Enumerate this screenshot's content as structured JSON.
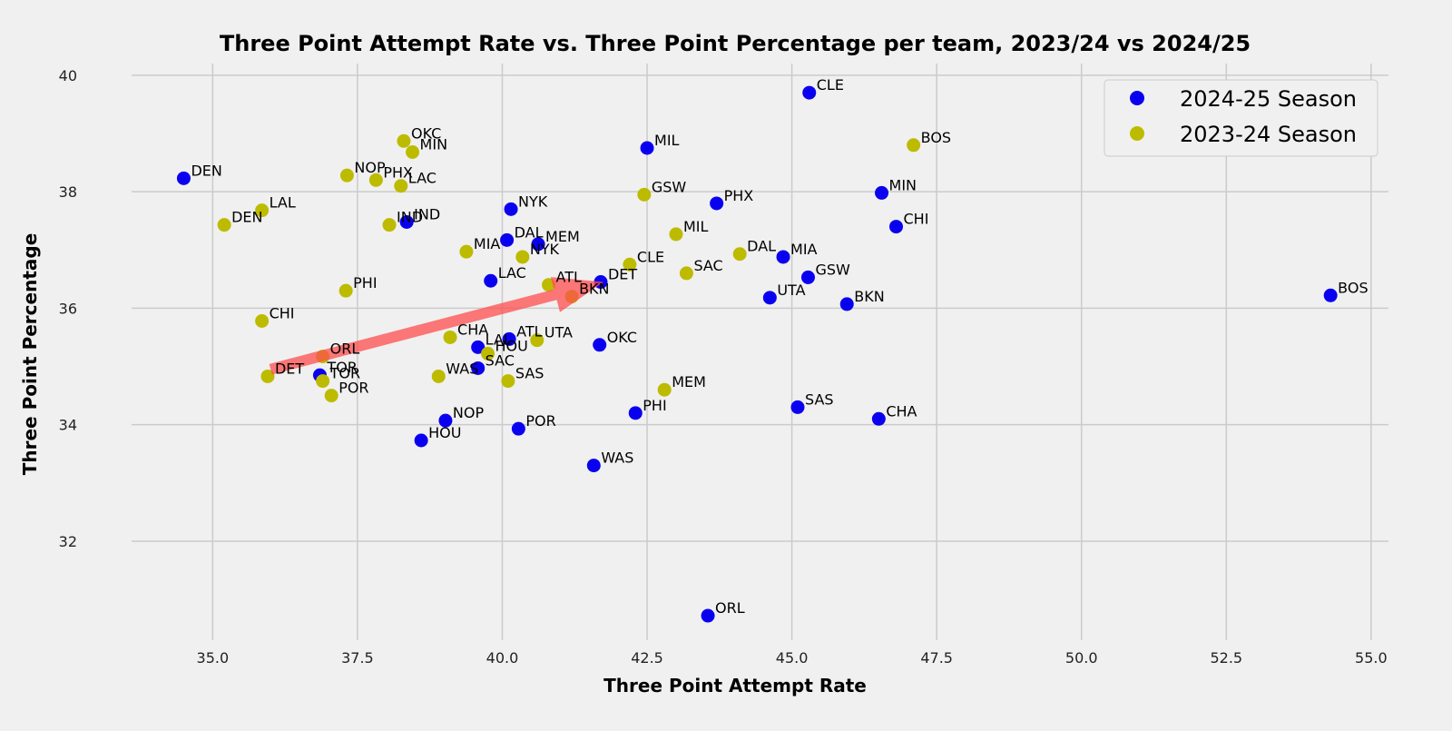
{
  "chart_data": {
    "type": "scatter",
    "title": "Three Point Attempt Rate vs. Three Point Percentage per team, 2023/24 vs 2024/25",
    "xlabel": "Three Point Attempt Rate",
    "ylabel": "Three Point Percentage",
    "xlim": [
      33.6,
      55.3
    ],
    "ylim": [
      30.3,
      40.2
    ],
    "xticks": [
      35.0,
      37.5,
      40.0,
      42.5,
      45.0,
      47.5,
      50.0,
      52.5,
      55.0
    ],
    "xtick_labels": [
      "35.0",
      "37.5",
      "40.0",
      "42.5",
      "45.0",
      "47.5",
      "50.0",
      "52.5",
      "55.0"
    ],
    "yticks": [
      32,
      34,
      36,
      38,
      40
    ],
    "ytick_labels": [
      "32",
      "34",
      "36",
      "38",
      "40"
    ],
    "grid": true,
    "legend_position": "top-right",
    "series": [
      {
        "name": "2024-25 Season",
        "color": "#0a00f0",
        "points": [
          {
            "team": "CLE",
            "x": 45.3,
            "y": 39.7
          },
          {
            "team": "MIL",
            "x": 42.5,
            "y": 38.75
          },
          {
            "team": "DEN",
            "x": 34.5,
            "y": 38.23
          },
          {
            "team": "MIN",
            "x": 46.55,
            "y": 37.98
          },
          {
            "team": "PHX",
            "x": 43.7,
            "y": 37.8
          },
          {
            "team": "NYK",
            "x": 40.15,
            "y": 37.7
          },
          {
            "team": "IND",
            "x": 38.35,
            "y": 37.48
          },
          {
            "team": "CHI",
            "x": 46.8,
            "y": 37.4
          },
          {
            "team": "DAL",
            "x": 40.08,
            "y": 37.17
          },
          {
            "team": "MEM",
            "x": 40.62,
            "y": 37.1
          },
          {
            "team": "MIA",
            "x": 44.85,
            "y": 36.88
          },
          {
            "team": "GSW",
            "x": 45.28,
            "y": 36.53
          },
          {
            "team": "LAC",
            "x": 39.8,
            "y": 36.47
          },
          {
            "team": "DET",
            "x": 41.7,
            "y": 36.45
          },
          {
            "team": "BOS",
            "x": 54.3,
            "y": 36.22
          },
          {
            "team": "UTA",
            "x": 44.62,
            "y": 36.18
          },
          {
            "team": "BKN",
            "x": 45.95,
            "y": 36.07
          },
          {
            "team": "ATL",
            "x": 40.12,
            "y": 35.47
          },
          {
            "team": "OKC",
            "x": 41.68,
            "y": 35.37
          },
          {
            "team": "LAL",
            "x": 39.58,
            "y": 35.33
          },
          {
            "team": "SAC",
            "x": 39.58,
            "y": 34.97
          },
          {
            "team": "TOR",
            "x": 36.85,
            "y": 34.85
          },
          {
            "team": "SAS",
            "x": 45.1,
            "y": 34.3
          },
          {
            "team": "PHI",
            "x": 42.3,
            "y": 34.2
          },
          {
            "team": "CHA",
            "x": 46.5,
            "y": 34.1
          },
          {
            "team": "NOP",
            "x": 39.02,
            "y": 34.07
          },
          {
            "team": "POR",
            "x": 40.28,
            "y": 33.93
          },
          {
            "team": "HOU",
            "x": 38.6,
            "y": 33.73
          },
          {
            "team": "WAS",
            "x": 41.58,
            "y": 33.3
          },
          {
            "team": "ORL",
            "x": 43.55,
            "y": 30.72
          }
        ]
      },
      {
        "name": "2023-24 Season",
        "color": "#bdbb00",
        "points": [
          {
            "team": "OKC",
            "x": 38.3,
            "y": 38.87
          },
          {
            "team": "BOS",
            "x": 47.1,
            "y": 38.8
          },
          {
            "team": "MIN",
            "x": 38.45,
            "y": 38.68
          },
          {
            "team": "NOP",
            "x": 37.32,
            "y": 38.28
          },
          {
            "team": "PHX",
            "x": 37.82,
            "y": 38.2
          },
          {
            "team": "LAC",
            "x": 38.25,
            "y": 38.1
          },
          {
            "team": "GSW",
            "x": 42.45,
            "y": 37.95
          },
          {
            "team": "LAL",
            "x": 35.85,
            "y": 37.68
          },
          {
            "team": "DEN",
            "x": 35.2,
            "y": 37.43
          },
          {
            "team": "IND",
            "x": 38.05,
            "y": 37.43
          },
          {
            "team": "MIL",
            "x": 43.0,
            "y": 37.27
          },
          {
            "team": "MIA",
            "x": 39.38,
            "y": 36.97
          },
          {
            "team": "DAL",
            "x": 44.1,
            "y": 36.93
          },
          {
            "team": "NYK",
            "x": 40.35,
            "y": 36.88
          },
          {
            "team": "CLE",
            "x": 42.2,
            "y": 36.75
          },
          {
            "team": "SAC",
            "x": 43.18,
            "y": 36.6
          },
          {
            "team": "ATL",
            "x": 40.8,
            "y": 36.4
          },
          {
            "team": "PHI",
            "x": 37.3,
            "y": 36.3
          },
          {
            "team": "BKN",
            "x": 41.2,
            "y": 36.2
          },
          {
            "team": "CHI",
            "x": 35.85,
            "y": 35.78
          },
          {
            "team": "CHA",
            "x": 39.1,
            "y": 35.5
          },
          {
            "team": "UTA",
            "x": 40.6,
            "y": 35.45
          },
          {
            "team": "HOU",
            "x": 39.75,
            "y": 35.22
          },
          {
            "team": "ORL",
            "x": 36.9,
            "y": 35.17
          },
          {
            "team": "DET",
            "x": 35.95,
            "y": 34.83
          },
          {
            "team": "WAS",
            "x": 38.9,
            "y": 34.83
          },
          {
            "team": "TOR",
            "x": 36.9,
            "y": 34.75
          },
          {
            "team": "SAS",
            "x": 40.1,
            "y": 34.75
          },
          {
            "team": "MEM",
            "x": 42.8,
            "y": 34.6
          },
          {
            "team": "POR",
            "x": 37.05,
            "y": 34.5
          }
        ]
      }
    ],
    "annotation": {
      "type": "arrow",
      "color": "#ff4d4d",
      "from": {
        "x": 36.0,
        "y": 34.95
      },
      "to": {
        "x": 41.75,
        "y": 36.45
      }
    }
  }
}
